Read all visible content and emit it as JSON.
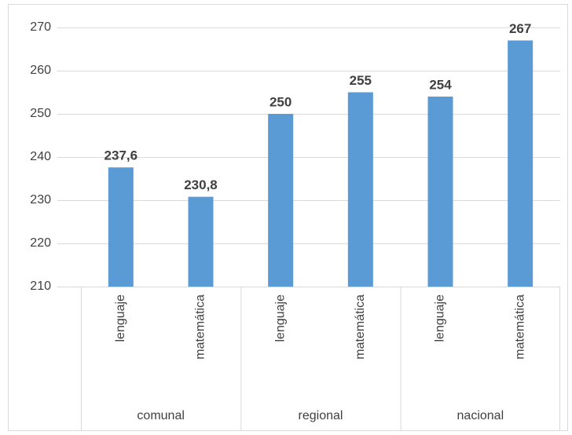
{
  "chart_data": {
    "type": "bar",
    "categories": [
      "lenguaje",
      "matemática",
      "lenguaje",
      "matemática",
      "lenguaje",
      "matemática"
    ],
    "groups": [
      "comunal",
      "regional",
      "nacional"
    ],
    "values": [
      237.6,
      230.8,
      250,
      255,
      254,
      267
    ],
    "value_labels": [
      "237,6",
      "230,8",
      "250",
      "255",
      "254",
      "267"
    ],
    "color": "#5b9bd5",
    "ylim": [
      210,
      270
    ],
    "yticks": [
      210,
      220,
      230,
      240,
      250,
      260,
      270
    ],
    "grid": true
  }
}
